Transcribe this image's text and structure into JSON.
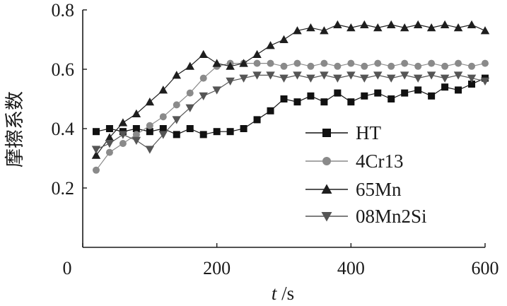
{
  "chart_data": {
    "type": "line",
    "title": "",
    "xlabel_italic": "t",
    "xlabel_unit": " /s",
    "ylabel": "摩擦系数",
    "xlim": [
      0,
      600
    ],
    "ylim": [
      0,
      0.8
    ],
    "xticks": [
      0,
      200,
      400,
      600
    ],
    "xtick_labels": [
      "0",
      "200",
      "400",
      "600"
    ],
    "yticks": [
      0.2,
      0.4,
      0.6,
      0.8
    ],
    "ytick_labels": [
      "0.2",
      "0.4",
      "0.6",
      "0.8"
    ],
    "grid": false,
    "legend_position": "right",
    "series": [
      {
        "name": "HT",
        "marker": "square",
        "x": [
          20,
          40,
          60,
          80,
          100,
          120,
          140,
          160,
          180,
          200,
          220,
          240,
          260,
          280,
          300,
          320,
          340,
          360,
          380,
          400,
          420,
          440,
          460,
          480,
          500,
          520,
          540,
          560,
          580,
          600
        ],
        "y": [
          0.39,
          0.4,
          0.39,
          0.4,
          0.39,
          0.4,
          0.38,
          0.4,
          0.38,
          0.39,
          0.39,
          0.4,
          0.43,
          0.46,
          0.5,
          0.49,
          0.51,
          0.49,
          0.52,
          0.49,
          0.51,
          0.52,
          0.5,
          0.52,
          0.53,
          0.51,
          0.54,
          0.53,
          0.55,
          0.57
        ]
      },
      {
        "name": "4Cr13",
        "marker": "circle",
        "x": [
          20,
          40,
          60,
          80,
          100,
          120,
          140,
          160,
          180,
          200,
          220,
          240,
          260,
          280,
          300,
          320,
          340,
          360,
          380,
          400,
          420,
          440,
          460,
          480,
          500,
          520,
          540,
          560,
          580,
          600
        ],
        "y": [
          0.26,
          0.32,
          0.35,
          0.38,
          0.41,
          0.44,
          0.48,
          0.52,
          0.57,
          0.61,
          0.62,
          0.62,
          0.62,
          0.62,
          0.61,
          0.62,
          0.61,
          0.62,
          0.61,
          0.62,
          0.61,
          0.62,
          0.61,
          0.62,
          0.61,
          0.62,
          0.61,
          0.62,
          0.61,
          0.62
        ]
      },
      {
        "name": "65Mn",
        "marker": "triangle-up",
        "x": [
          20,
          40,
          60,
          80,
          100,
          120,
          140,
          160,
          180,
          200,
          220,
          240,
          260,
          280,
          300,
          320,
          340,
          360,
          380,
          400,
          420,
          440,
          460,
          480,
          500,
          520,
          540,
          560,
          580,
          600
        ],
        "y": [
          0.31,
          0.37,
          0.42,
          0.45,
          0.49,
          0.53,
          0.58,
          0.61,
          0.65,
          0.62,
          0.61,
          0.62,
          0.65,
          0.68,
          0.7,
          0.73,
          0.74,
          0.73,
          0.75,
          0.74,
          0.75,
          0.74,
          0.75,
          0.74,
          0.75,
          0.74,
          0.75,
          0.74,
          0.75,
          0.73
        ]
      },
      {
        "name": "08Mn2Si",
        "marker": "triangle-down",
        "x": [
          20,
          40,
          60,
          80,
          100,
          120,
          140,
          160,
          180,
          200,
          220,
          240,
          260,
          280,
          300,
          320,
          340,
          360,
          380,
          400,
          420,
          440,
          460,
          480,
          500,
          520,
          540,
          560,
          580,
          600
        ],
        "y": [
          0.33,
          0.35,
          0.38,
          0.36,
          0.33,
          0.38,
          0.43,
          0.47,
          0.51,
          0.53,
          0.56,
          0.57,
          0.58,
          0.58,
          0.57,
          0.58,
          0.57,
          0.58,
          0.57,
          0.58,
          0.57,
          0.58,
          0.57,
          0.58,
          0.57,
          0.58,
          0.57,
          0.58,
          0.57,
          0.56
        ]
      }
    ]
  }
}
